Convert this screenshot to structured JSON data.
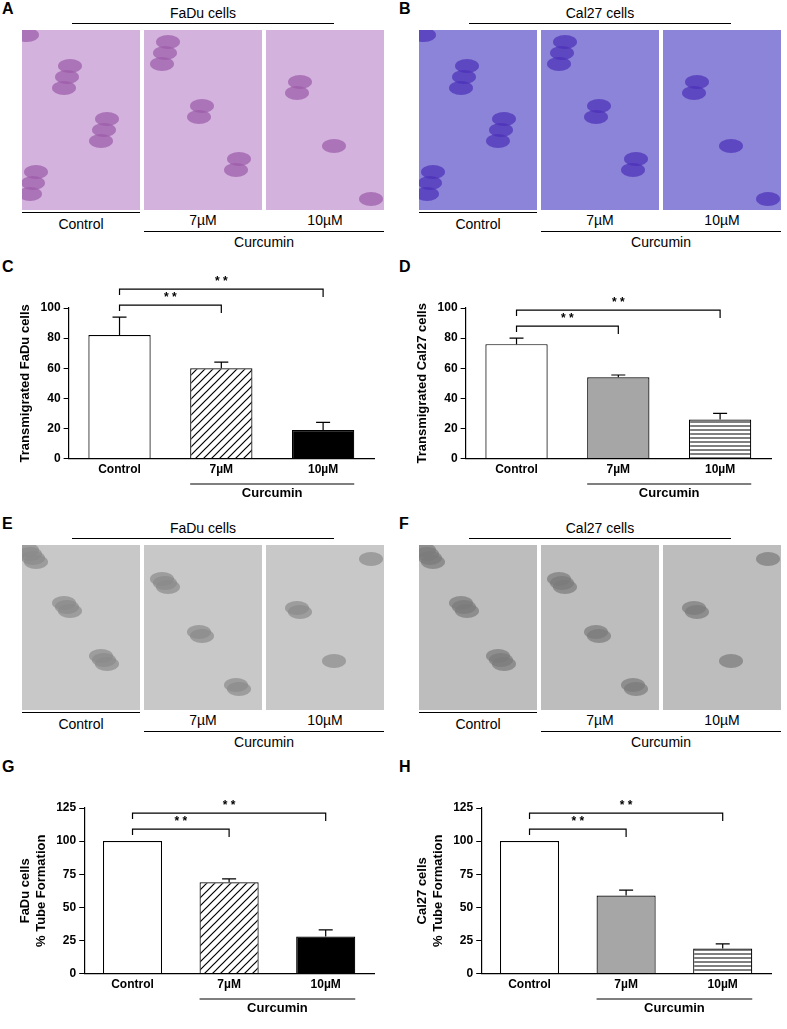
{
  "image_panels": [
    {
      "panel": "A",
      "title": "FaDu cells",
      "images": [
        "Control",
        "7µM",
        "10µM"
      ],
      "group": {
        "label": "Curcumin",
        "members": [
          "7µM",
          "10µM"
        ]
      }
    },
    {
      "panel": "B",
      "title": "Cal27 cells",
      "images": [
        "Control",
        "7µM",
        "10µM"
      ],
      "group": {
        "label": "Curcumin",
        "members": [
          "7µM",
          "10µM"
        ]
      }
    },
    {
      "panel": "E",
      "title": "FaDu cells",
      "images": [
        "Control",
        "7µM",
        "10µM"
      ],
      "group": {
        "label": "Curcumin",
        "members": [
          "7µM",
          "10µM"
        ]
      }
    },
    {
      "panel": "F",
      "title": "Cal27 cells",
      "images": [
        "Control",
        "7µM",
        "10µM"
      ],
      "group": {
        "label": "Curcumin",
        "members": [
          "7µM",
          "10µM"
        ]
      }
    }
  ],
  "chart_data": [
    {
      "panel": "C",
      "type": "bar",
      "ylabel": [
        "Transmigrated FaDu cells"
      ],
      "categories": [
        "Control",
        "7µM",
        "10µM"
      ],
      "values": [
        82,
        60,
        19
      ],
      "errors": [
        12,
        4,
        5
      ],
      "colors": [
        "#ffffff",
        "#ffffff",
        "#000000"
      ],
      "ylim": [
        0,
        100
      ],
      "yticks": [
        0,
        20,
        40,
        60,
        80,
        100
      ],
      "grid": false,
      "group": {
        "label": "Curcumin",
        "members": [
          "7µM",
          "10µM"
        ]
      },
      "annotations": [
        {
          "text": "* *",
          "from": "Control",
          "to": "7µM"
        },
        {
          "text": "* *",
          "from": "Control",
          "to": "10µM"
        }
      ]
    },
    {
      "panel": "D",
      "type": "bar",
      "ylabel": [
        "Transmigrated Cal27 cells"
      ],
      "categories": [
        "Control",
        "7µM",
        "10µM"
      ],
      "values": [
        76,
        54,
        26
      ],
      "errors": [
        4,
        1.5,
        4
      ],
      "colors": [
        "#ffffff",
        "#a6a6a6",
        "#ffffff"
      ],
      "ylim": [
        0,
        100
      ],
      "yticks": [
        0,
        20,
        40,
        60,
        80,
        100
      ],
      "grid": false,
      "group": {
        "label": "Curcumin",
        "members": [
          "7µM",
          "10µM"
        ]
      },
      "annotations": [
        {
          "text": "* *",
          "from": "Control",
          "to": "7µM"
        },
        {
          "text": "* *",
          "from": "Control",
          "to": "10µM"
        }
      ]
    },
    {
      "panel": "G",
      "type": "bar",
      "ylabel": [
        "FaDu cells",
        "% Tube Formation"
      ],
      "categories": [
        "Control",
        "7µM",
        "10µM"
      ],
      "values": [
        100,
        69,
        28
      ],
      "errors": [
        0,
        2.5,
        5
      ],
      "colors": [
        "#ffffff",
        "#ffffff",
        "#000000"
      ],
      "ylim": [
        0,
        125
      ],
      "yticks": [
        0,
        25,
        50,
        75,
        100,
        125
      ],
      "grid": false,
      "group": {
        "label": "Curcumin",
        "members": [
          "7µM",
          "10µM"
        ]
      },
      "annotations": [
        {
          "text": "* *",
          "from": "Control",
          "to": "7µM"
        },
        {
          "text": "* *",
          "from": "Control",
          "to": "10µM"
        }
      ]
    },
    {
      "panel": "H",
      "type": "bar",
      "ylabel": [
        "Cal27 cells",
        "% Tube Formation"
      ],
      "categories": [
        "Control",
        "7µM",
        "10µM"
      ],
      "values": [
        100,
        59,
        19
      ],
      "errors": [
        0,
        4,
        3.5
      ],
      "colors": [
        "#ffffff",
        "#a6a6a6",
        "#ffffff"
      ],
      "ylim": [
        0,
        125
      ],
      "yticks": [
        0,
        25,
        50,
        75,
        100,
        125
      ],
      "grid": false,
      "group": {
        "label": "Curcumin",
        "members": [
          "7µM",
          "10µM"
        ]
      },
      "annotations": [
        {
          "text": "* *",
          "from": "Control",
          "to": "7µM"
        },
        {
          "text": "* *",
          "from": "Control",
          "to": "10µM"
        }
      ]
    }
  ]
}
